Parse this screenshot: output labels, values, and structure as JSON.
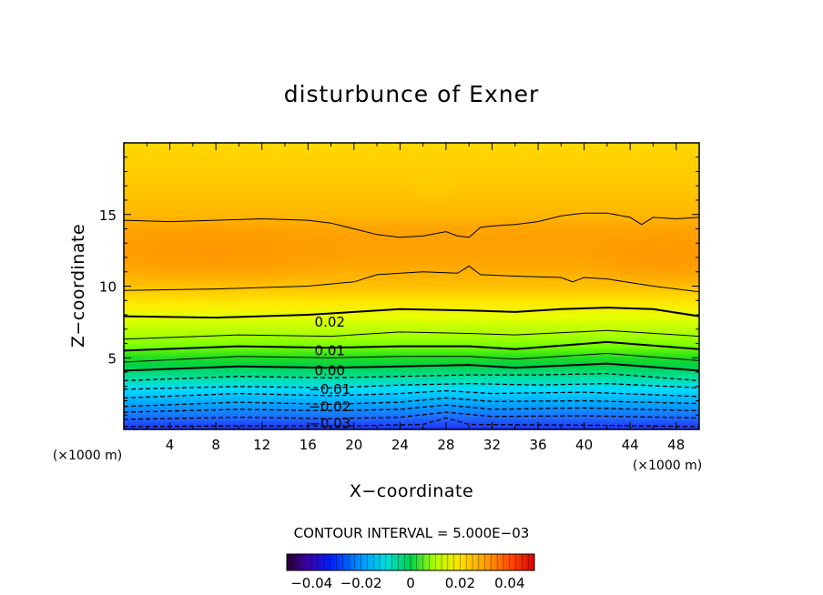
{
  "chart_data": {
    "type": "heatmap",
    "title": "disturbunce of Exner",
    "xlabel": "X−coordinate",
    "ylabel": "Z−coordinate",
    "x_unit": "(×1000 m)",
    "y_unit": "(×1000 m)",
    "xlim": [
      0,
      50
    ],
    "ylim": [
      0,
      20
    ],
    "x_ticks": [
      "4",
      "8",
      "12",
      "16",
      "20",
      "24",
      "28",
      "32",
      "36",
      "40",
      "44",
      "48"
    ],
    "y_ticks": [
      "5",
      "10",
      "15"
    ],
    "contour_interval_text": "CONTOUR INTERVAL = 5.000E−03",
    "contour_interval": 0.005,
    "contour_labels": [
      {
        "text": "0.02",
        "x": 17.9,
        "z": 7.5
      },
      {
        "text": "0.01",
        "x": 17.9,
        "z": 5.5
      },
      {
        "text": "0.00",
        "x": 17.9,
        "z": 4.1
      },
      {
        "text": "−0.01",
        "x": 17.9,
        "z": 2.8
      },
      {
        "text": "−0.02",
        "x": 17.9,
        "z": 1.6
      },
      {
        "text": "−0.03",
        "x": 17.9,
        "z": 0.4
      }
    ],
    "colorbar": {
      "range": [
        -0.05,
        0.05
      ],
      "tick_labels": [
        "−0.04",
        "−0.02",
        "0",
        "0.02",
        "0.04"
      ],
      "tick_values": [
        -0.04,
        -0.02,
        0,
        0.02,
        0.04
      ]
    },
    "contours": [
      {
        "level": -0.035,
        "style": "dashed",
        "pts": [
          [
            0,
            0.2
          ],
          [
            10,
            0.25
          ],
          [
            20,
            0.25
          ],
          [
            26,
            0.35
          ],
          [
            28,
            0.8
          ],
          [
            30,
            0.35
          ],
          [
            40,
            0.3
          ],
          [
            50,
            0.2
          ]
        ]
      },
      {
        "level": -0.03,
        "style": "dashed",
        "pts": [
          [
            0,
            0.7
          ],
          [
            10,
            0.85
          ],
          [
            18,
            0.75
          ],
          [
            24,
            0.85
          ],
          [
            28,
            1.2
          ],
          [
            32,
            0.9
          ],
          [
            40,
            0.95
          ],
          [
            50,
            0.8
          ]
        ]
      },
      {
        "level": -0.025,
        "style": "dashed",
        "pts": [
          [
            0,
            1.2
          ],
          [
            10,
            1.4
          ],
          [
            18,
            1.3
          ],
          [
            24,
            1.4
          ],
          [
            28,
            1.7
          ],
          [
            32,
            1.4
          ],
          [
            40,
            1.5
          ],
          [
            50,
            1.3
          ]
        ]
      },
      {
        "level": -0.02,
        "style": "dashed",
        "pts": [
          [
            0,
            1.6
          ],
          [
            10,
            1.9
          ],
          [
            18,
            1.75
          ],
          [
            24,
            1.9
          ],
          [
            28,
            2.2
          ],
          [
            32,
            1.95
          ],
          [
            40,
            2.0
          ],
          [
            50,
            1.8
          ]
        ]
      },
      {
        "level": -0.015,
        "style": "dashed",
        "pts": [
          [
            0,
            2.2
          ],
          [
            10,
            2.5
          ],
          [
            18,
            2.35
          ],
          [
            24,
            2.5
          ],
          [
            28,
            2.7
          ],
          [
            32,
            2.5
          ],
          [
            40,
            2.6
          ],
          [
            50,
            2.3
          ]
        ]
      },
      {
        "level": -0.01,
        "style": "dashed",
        "pts": [
          [
            0,
            2.8
          ],
          [
            10,
            3.0
          ],
          [
            18,
            2.9
          ],
          [
            24,
            3.1
          ],
          [
            30,
            3.2
          ],
          [
            36,
            3.1
          ],
          [
            42,
            3.2
          ],
          [
            50,
            2.9
          ]
        ]
      },
      {
        "level": -0.005,
        "style": "dashed",
        "pts": [
          [
            0,
            3.4
          ],
          [
            10,
            3.7
          ],
          [
            18,
            3.6
          ],
          [
            24,
            3.7
          ],
          [
            30,
            3.8
          ],
          [
            36,
            3.8
          ],
          [
            42,
            3.9
          ],
          [
            50,
            3.4
          ]
        ]
      },
      {
        "level": 0.0,
        "style": "thick",
        "pts": [
          [
            0,
            4.1
          ],
          [
            10,
            4.4
          ],
          [
            18,
            4.3
          ],
          [
            24,
            4.4
          ],
          [
            30,
            4.5
          ],
          [
            34,
            4.3
          ],
          [
            42,
            4.6
          ],
          [
            50,
            4.1
          ]
        ]
      },
      {
        "level": 0.005,
        "style": "thin",
        "pts": [
          [
            0,
            4.7
          ],
          [
            10,
            5.1
          ],
          [
            18,
            5.0
          ],
          [
            24,
            5.1
          ],
          [
            30,
            5.1
          ],
          [
            34,
            4.9
          ],
          [
            42,
            5.3
          ],
          [
            50,
            4.8
          ]
        ]
      },
      {
        "level": 0.01,
        "style": "thick",
        "pts": [
          [
            0,
            5.5
          ],
          [
            10,
            5.8
          ],
          [
            18,
            5.7
          ],
          [
            24,
            5.8
          ],
          [
            30,
            5.8
          ],
          [
            34,
            5.6
          ],
          [
            42,
            6.1
          ],
          [
            50,
            5.6
          ]
        ]
      },
      {
        "level": 0.015,
        "style": "thin",
        "pts": [
          [
            0,
            6.3
          ],
          [
            10,
            6.6
          ],
          [
            18,
            6.5
          ],
          [
            24,
            6.8
          ],
          [
            30,
            6.7
          ],
          [
            34,
            6.6
          ],
          [
            42,
            6.9
          ],
          [
            50,
            6.5
          ]
        ]
      },
      {
        "level": 0.02,
        "style": "thick",
        "pts": [
          [
            0,
            7.9
          ],
          [
            8,
            7.8
          ],
          [
            16,
            8.0
          ],
          [
            20,
            8.2
          ],
          [
            24,
            8.4
          ],
          [
            30,
            8.3
          ],
          [
            34,
            8.2
          ],
          [
            38,
            8.4
          ],
          [
            42,
            8.5
          ],
          [
            46,
            8.4
          ],
          [
            50,
            7.9
          ]
        ]
      },
      {
        "level": 0.025,
        "style": "thin",
        "pts": [
          [
            0,
            9.7
          ],
          [
            8,
            9.8
          ],
          [
            16,
            10.0
          ],
          [
            20,
            10.3
          ],
          [
            22,
            10.8
          ],
          [
            26,
            11.0
          ],
          [
            29,
            10.9
          ],
          [
            30,
            11.4
          ],
          [
            31,
            10.8
          ],
          [
            34,
            10.7
          ],
          [
            38,
            10.6
          ],
          [
            39,
            10.3
          ],
          [
            40,
            10.6
          ],
          [
            42,
            10.5
          ],
          [
            46,
            10.0
          ],
          [
            50,
            9.6
          ]
        ]
      },
      {
        "level": 0.03,
        "style": "thin",
        "pts": [
          [
            0,
            14.6
          ],
          [
            4,
            14.5
          ],
          [
            8,
            14.6
          ],
          [
            12,
            14.7
          ],
          [
            16,
            14.6
          ],
          [
            18,
            14.4
          ],
          [
            20,
            14.0
          ],
          [
            22,
            13.6
          ],
          [
            24,
            13.4
          ],
          [
            26,
            13.5
          ],
          [
            28,
            13.8
          ],
          [
            29,
            13.5
          ],
          [
            30,
            13.4
          ],
          [
            31,
            14.1
          ],
          [
            32,
            14.2
          ],
          [
            34,
            14.3
          ],
          [
            36,
            14.5
          ],
          [
            38,
            14.9
          ],
          [
            40,
            15.1
          ],
          [
            42,
            15.1
          ],
          [
            44,
            14.8
          ],
          [
            45,
            14.3
          ],
          [
            46,
            14.8
          ],
          [
            48,
            14.7
          ],
          [
            50,
            14.8
          ]
        ]
      }
    ]
  }
}
